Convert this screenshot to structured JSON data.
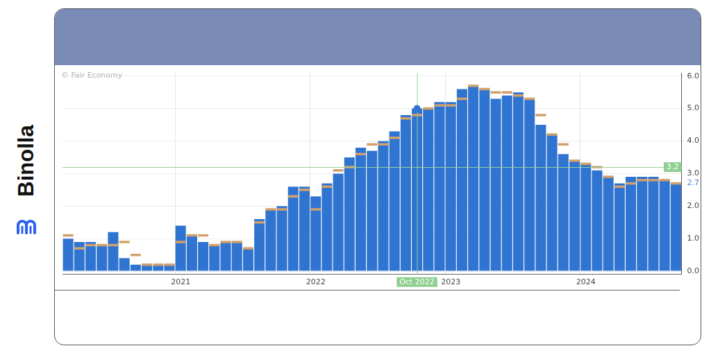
{
  "chart_data": {
    "type": "bar",
    "brand": "Binolla",
    "watermark": "© Fair Economy",
    "categories": [
      null,
      null,
      null,
      null,
      null,
      null,
      null,
      null,
      null,
      null,
      "2021",
      null,
      null,
      null,
      null,
      null,
      null,
      null,
      null,
      null,
      null,
      null,
      "2022",
      null,
      null,
      null,
      null,
      null,
      null,
      null,
      null,
      null,
      null,
      null,
      "2023",
      null,
      null,
      null,
      null,
      null,
      null,
      null,
      null,
      null,
      null,
      null,
      "2024",
      null,
      null,
      null,
      null,
      null,
      null,
      null,
      null
    ],
    "series": [
      {
        "color": "#2f74d0",
        "values": [
          1.0,
          0.9,
          0.9,
          0.8,
          1.2,
          0.4,
          0.2,
          0.2,
          0.2,
          0.2,
          1.4,
          1.1,
          0.9,
          0.8,
          0.9,
          0.9,
          0.7,
          1.6,
          1.9,
          2.0,
          2.6,
          2.6,
          2.3,
          2.7,
          3.0,
          3.5,
          3.8,
          3.7,
          4.0,
          4.3,
          4.8,
          5.0,
          5.0,
          5.2,
          5.2,
          5.6,
          5.7,
          5.6,
          5.3,
          5.4,
          5.5,
          5.3,
          4.5,
          4.2,
          3.6,
          3.4,
          3.3,
          3.1,
          2.9,
          2.7,
          2.9,
          2.9,
          2.9,
          2.8,
          2.7
        ]
      },
      {
        "type": "line",
        "marker": "line",
        "line_style": "none",
        "color": "#d2a06c",
        "values": [
          1.1,
          0.7,
          0.8,
          0.8,
          0.8,
          0.9,
          0.5,
          0.2,
          0.2,
          0.2,
          0.9,
          1.1,
          1.1,
          0.8,
          0.9,
          0.9,
          0.7,
          1.5,
          1.9,
          1.9,
          2.3,
          2.5,
          1.9,
          2.6,
          3.1,
          3.2,
          3.6,
          3.9,
          3.9,
          4.1,
          4.7,
          4.8,
          5.0,
          5.1,
          5.1,
          5.3,
          5.7,
          5.6,
          5.5,
          5.5,
          5.4,
          5.3,
          4.8,
          4.2,
          3.9,
          3.4,
          3.3,
          3.2,
          2.9,
          2.6,
          2.7,
          2.8,
          2.8,
          2.8,
          2.7
        ]
      }
    ],
    "ylim": [
      -0.1,
      6.1
    ],
    "yticks": [
      {
        "value": 0,
        "label": "0.0"
      },
      {
        "value": 1,
        "label": "1.0"
      },
      {
        "value": 2,
        "label": "2.0"
      },
      {
        "value": 3,
        "label": "3.0"
      },
      {
        "value": 4,
        "label": "4.0"
      },
      {
        "value": 5,
        "label": "5.0"
      },
      {
        "value": 6,
        "label": "6.0"
      }
    ],
    "grid": true,
    "crosshair": {
      "x": "Oct 2022",
      "category_index": 31,
      "y": 3.2
    }
  }
}
